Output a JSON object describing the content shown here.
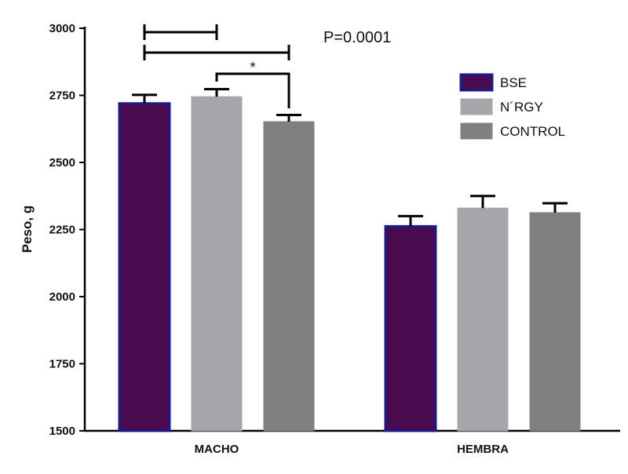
{
  "chart_data": {
    "type": "bar",
    "categories": [
      "MACHO",
      "HEMBRA"
    ],
    "series": [
      {
        "name": "BSE",
        "values": [
          2720,
          2262
        ],
        "errors": [
          32,
          38
        ],
        "color": "#4a0a4e",
        "stroke": "#1a1a8c"
      },
      {
        "name": "N´RGY",
        "values": [
          2745,
          2330
        ],
        "errors": [
          28,
          45
        ],
        "color": "#a6a6aa",
        "stroke": "#a6a6aa"
      },
      {
        "name": "CONTROL",
        "values": [
          2652,
          2313
        ],
        "errors": [
          25,
          35
        ],
        "color": "#808080",
        "stroke": "#808080"
      }
    ],
    "ylabel": "Peso, g",
    "xlabel": "",
    "ylim": [
      1500,
      3000
    ],
    "yticks": [
      "1500",
      "1750",
      "2000",
      "2250",
      "2500",
      "2750",
      "3000"
    ],
    "annotation": "P=0.0001",
    "significance_marker": "*",
    "legend_position": "top-right",
    "grid": false
  }
}
